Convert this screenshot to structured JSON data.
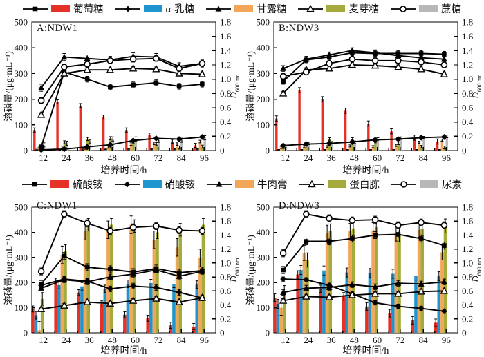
{
  "axes": {
    "xlabel": "培养时间/h",
    "ylabel_left": "溶磷量/(μg·mL⁻¹)",
    "d_label": "D",
    "d_sub": "600 nm",
    "x_ticks": [
      12,
      24,
      36,
      48,
      60,
      72,
      84,
      96
    ],
    "ylim_left": [
      0,
      500
    ],
    "ystep_left": 100,
    "ylim_right": [
      0,
      1.8
    ],
    "ystep_right": 0.2
  },
  "colors": {
    "red": "#e53126",
    "blue": "#1e95cf",
    "orange": "#f2a65a",
    "olive": "#a4ab3b",
    "gray": "#b8b8b8",
    "line": "#000000"
  },
  "legends": [
    {
      "id": "carbon",
      "items": [
        {
          "key": "glucose",
          "label": "葡萄糖",
          "marker": "square",
          "color": "#e53126"
        },
        {
          "key": "alpha-lactose",
          "label": "α-乳糖",
          "marker": "diamond",
          "color": "#1e95cf"
        },
        {
          "key": "mannose",
          "label": "甘露糖",
          "marker": "triangle",
          "color": "#f2a65a"
        },
        {
          "key": "maltose",
          "label": "麦芽糖",
          "marker": "triangle-open",
          "color": "#a4ab3b"
        },
        {
          "key": "sucrose",
          "label": "蔗糖",
          "marker": "circle-open",
          "color": "#b8b8b8"
        }
      ]
    },
    {
      "id": "nitrogen",
      "items": [
        {
          "key": "ammonium-sulfate",
          "label": "硫酸铵",
          "marker": "square",
          "color": "#e53126"
        },
        {
          "key": "ammonium-nitrate",
          "label": "硝酸铵",
          "marker": "diamond",
          "color": "#1e95cf"
        },
        {
          "key": "beef-extract",
          "label": "牛肉膏",
          "marker": "triangle",
          "color": "#f2a65a"
        },
        {
          "key": "peptone",
          "label": "蛋白胨",
          "marker": "triangle-open",
          "color": "#a4ab3b"
        },
        {
          "key": "urea",
          "label": "尿素",
          "marker": "circle-open",
          "color": "#b8b8b8"
        }
      ]
    }
  ],
  "chart_data": [
    {
      "type": "bar+line",
      "title": "A:NDW1",
      "size": "short",
      "bar_width": 3.4,
      "x": [
        12,
        24,
        36,
        48,
        60,
        72,
        84,
        96
      ],
      "bars": [
        {
          "name": "葡萄糖",
          "color": "#e53126",
          "values": [
            80,
            190,
            175,
            130,
            80,
            60,
            35,
            20
          ],
          "err": 8
        },
        {
          "name": "α-乳糖",
          "color": "#1e95cf",
          "values": [
            3,
            3,
            4,
            6,
            5,
            5,
            5,
            5
          ],
          "err": 2
        },
        {
          "name": "甘露糖",
          "color": "#f2a65a",
          "values": [
            8,
            12,
            10,
            14,
            25,
            28,
            25,
            35
          ],
          "err": 5
        },
        {
          "name": "麦芽糖",
          "color": "#a4ab3b",
          "values": [
            13,
            32,
            45,
            48,
            33,
            25,
            12,
            15
          ],
          "err": 6
        },
        {
          "name": "蔗糖",
          "color": "#b8b8b8",
          "values": [
            22,
            28,
            35,
            45,
            45,
            40,
            40,
            50
          ],
          "err": 8
        }
      ],
      "lines": [
        {
          "name": "葡萄糖",
          "marker": "square",
          "values": [
            0.05,
            1.1,
            1.0,
            0.89,
            0.92,
            0.95,
            0.9,
            0.93
          ],
          "err": 0.04
        },
        {
          "name": "α-乳糖",
          "marker": "diamond",
          "values": [
            0.01,
            0.02,
            0.05,
            0.08,
            0.14,
            0.17,
            0.16,
            0.19
          ],
          "err": 0.02
        },
        {
          "name": "甘露糖",
          "marker": "triangle",
          "values": [
            0.88,
            1.31,
            1.29,
            1.27,
            1.32,
            1.31,
            1.18,
            1.22
          ],
          "err": 0.05
        },
        {
          "name": "麦芽糖",
          "marker": "triangle-open",
          "values": [
            0.5,
            1.08,
            1.13,
            1.13,
            1.15,
            1.14,
            1.08,
            1.07
          ],
          "err": 0.03
        },
        {
          "name": "蔗糖",
          "marker": "circle-open",
          "values": [
            0.7,
            1.17,
            1.21,
            1.26,
            1.28,
            1.29,
            1.15,
            1.22
          ],
          "err": 0.04
        }
      ]
    },
    {
      "type": "bar+line",
      "title": "B:NDW3",
      "size": "short",
      "bar_width": 3.4,
      "x": [
        12,
        24,
        36,
        48,
        60,
        72,
        84,
        96
      ],
      "bars": [
        {
          "name": "葡萄糖",
          "color": "#e53126",
          "values": [
            125,
            235,
            200,
            155,
            105,
            75,
            50,
            35
          ],
          "err": 10
        },
        {
          "name": "α-乳糖",
          "color": "#1e95cf",
          "values": [
            3,
            3,
            3,
            3,
            3,
            3,
            3,
            3
          ],
          "err": 1
        },
        {
          "name": "甘露糖",
          "color": "#f2a65a",
          "values": [
            12,
            15,
            15,
            18,
            15,
            20,
            32,
            40
          ],
          "err": 4
        },
        {
          "name": "麦芽糖",
          "color": "#a4ab3b",
          "values": [
            13,
            25,
            45,
            45,
            35,
            28,
            15,
            12
          ],
          "err": 5
        },
        {
          "name": "蔗糖",
          "color": "#b8b8b8",
          "values": [
            15,
            28,
            30,
            32,
            45,
            48,
            50,
            55
          ],
          "err": 5
        }
      ],
      "lines": [
        {
          "name": "葡萄糖",
          "marker": "square",
          "values": [
            0.97,
            1.27,
            1.31,
            1.37,
            1.36,
            1.36,
            1.36,
            1.35
          ],
          "err": 0.04
        },
        {
          "name": "α-乳糖",
          "marker": "diamond",
          "values": [
            0.07,
            0.09,
            0.1,
            0.12,
            0.15,
            0.16,
            0.18,
            0.19
          ],
          "err": 0.02
        },
        {
          "name": "甘露糖",
          "marker": "triangle",
          "values": [
            1.15,
            1.28,
            1.34,
            1.4,
            1.37,
            1.33,
            1.3,
            1.28
          ],
          "err": 0.04
        },
        {
          "name": "麦芽糖",
          "marker": "triangle-open",
          "values": [
            0.8,
            1.13,
            1.15,
            1.2,
            1.19,
            1.17,
            1.14,
            1.07
          ],
          "err": 0.03
        },
        {
          "name": "蔗糖",
          "marker": "circle-open",
          "values": [
            1.04,
            1.1,
            1.22,
            1.28,
            1.26,
            1.26,
            1.24,
            1.2
          ],
          "err": 0.04
        }
      ]
    },
    {
      "type": "bar+line",
      "title": "C:NDW1",
      "size": "tall",
      "bar_width": 4.6,
      "x": [
        12,
        24,
        36,
        48,
        60,
        72,
        84,
        96
      ],
      "bars": [
        {
          "name": "硫酸铵",
          "color": "#e53126",
          "values": [
            95,
            205,
            160,
            115,
            72,
            58,
            30,
            25
          ],
          "err": 12
        },
        {
          "name": "硝酸铵",
          "color": "#1e95cf",
          "values": [
            70,
            190,
            185,
            175,
            195,
            198,
            195,
            192
          ],
          "err": 15
        },
        {
          "name": "牛肉膏",
          "color": "#f2a65a",
          "values": [
            10,
            310,
            405,
            410,
            430,
            370,
            340,
            298
          ],
          "err": 35
        },
        {
          "name": "蛋白胨",
          "color": "#a4ab3b",
          "values": [
            135,
            325,
            430,
            430,
            425,
            400,
            410,
            430
          ],
          "err": 25
        },
        {
          "name": "尿素",
          "color": "#b8b8b8",
          "values": [
            0,
            0,
            0,
            0,
            0,
            0,
            0,
            0
          ],
          "err": 0
        }
      ],
      "lines": [
        {
          "name": "硫酸铵",
          "marker": "square",
          "values": [
            0.7,
            1.1,
            0.94,
            0.91,
            0.87,
            0.92,
            0.86,
            0.89
          ],
          "err": 0.05
        },
        {
          "name": "硝酸铵",
          "marker": "diamond",
          "values": [
            0.68,
            0.77,
            0.74,
            0.63,
            0.67,
            0.65,
            0.58,
            0.5
          ],
          "err": 0.04
        },
        {
          "name": "牛肉膏",
          "marker": "triangle",
          "values": [
            0.64,
            0.76,
            0.73,
            0.8,
            0.84,
            0.9,
            0.81,
            0.88
          ],
          "err": 0.04
        },
        {
          "name": "蛋白胨",
          "marker": "triangle-open",
          "values": [
            0.34,
            0.39,
            0.44,
            0.42,
            0.46,
            0.49,
            0.44,
            0.5
          ],
          "err": 0.03
        },
        {
          "name": "尿素",
          "marker": "circle-open",
          "values": [
            0.88,
            1.7,
            1.57,
            1.46,
            1.51,
            1.53,
            1.47,
            1.46
          ],
          "err": 0.05
        }
      ]
    },
    {
      "type": "bar+line",
      "title": "D:NDW3",
      "size": "tall",
      "bar_width": 4.6,
      "x": [
        12,
        24,
        36,
        48,
        60,
        72,
        84,
        96
      ],
      "bars": [
        {
          "name": "硫酸铵",
          "color": "#e53126",
          "values": [
            140,
            232,
            175,
            145,
            105,
            78,
            50,
            40
          ],
          "err": 15
        },
        {
          "name": "硝酸铵",
          "color": "#1e95cf",
          "values": [
            115,
            250,
            248,
            240,
            238,
            235,
            228,
            225
          ],
          "err": 18
        },
        {
          "name": "牛肉膏",
          "color": "#f2a65a",
          "values": [
            100,
            318,
            398,
            405,
            408,
            395,
            410,
            320
          ],
          "err": 30
        },
        {
          "name": "蛋白胨",
          "color": "#a4ab3b",
          "values": [
            160,
            290,
            405,
            415,
            420,
            390,
            415,
            425
          ],
          "err": 28
        },
        {
          "name": "尿素",
          "color": "#b8b8b8",
          "values": [
            0,
            0,
            0,
            0,
            0,
            0,
            0,
            0
          ],
          "err": 0
        }
      ],
      "lines": [
        {
          "name": "硫酸铵",
          "marker": "square",
          "values": [
            0.9,
            1.31,
            1.31,
            1.35,
            1.4,
            1.41,
            1.35,
            1.25
          ],
          "err": 0.05
        },
        {
          "name": "硝酸铵",
          "marker": "diamond",
          "values": [
            0.77,
            0.76,
            0.68,
            0.56,
            0.43,
            0.38,
            0.35,
            0.31
          ],
          "err": 0.03
        },
        {
          "name": "牛肉膏",
          "marker": "triangle",
          "values": [
            0.58,
            0.64,
            0.65,
            0.69,
            0.66,
            0.71,
            0.7,
            0.73
          ],
          "err": 0.04
        },
        {
          "name": "蛋白胨",
          "marker": "triangle-open",
          "values": [
            0.46,
            0.52,
            0.51,
            0.54,
            0.56,
            0.56,
            0.59,
            0.6
          ],
          "err": 0.03
        },
        {
          "name": "尿素",
          "marker": "circle-open",
          "values": [
            1.14,
            1.7,
            1.64,
            1.61,
            1.62,
            1.54,
            1.58,
            1.54
          ],
          "err": 0.05
        }
      ]
    }
  ]
}
